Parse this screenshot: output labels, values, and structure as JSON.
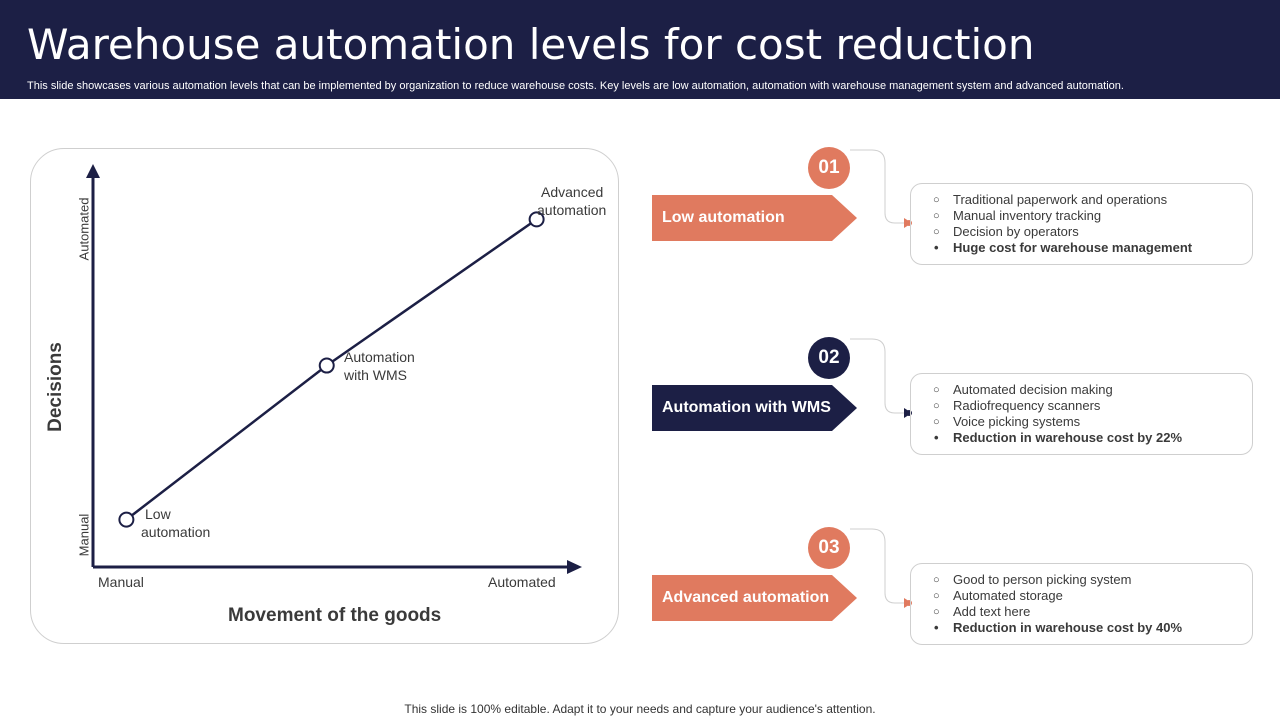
{
  "header": {
    "title": "Warehouse automation levels for cost reduction",
    "subtitle": "This slide showcases various automation levels that can be implemented by organization to reduce warehouse costs. Key levels are low automation, automation with warehouse management system and advanced automation."
  },
  "chart_data": {
    "type": "line",
    "xlabel": "Movement of the goods",
    "ylabel": "Decisions",
    "x_ticks": [
      "Manual",
      "Automated"
    ],
    "y_ticks": [
      "Manual",
      "Automated"
    ],
    "xlim": [
      0,
      1
    ],
    "ylim": [
      0,
      1
    ],
    "points": [
      {
        "label_line1": "Low",
        "label_line2": "automation",
        "x": 0.07,
        "y": 0.12
      },
      {
        "label_line1": "Automation",
        "label_line2": "with WMS",
        "x": 0.49,
        "y": 0.51
      },
      {
        "label_line1": "Advanced",
        "label_line2": "automation",
        "x": 0.93,
        "y": 0.88
      }
    ],
    "line_color": "#1c1f45"
  },
  "levels": [
    {
      "number": "01",
      "label": "Low automation",
      "color": "#e07a5f",
      "items": [
        "Traditional paperwork and operations",
        "Manual inventory tracking",
        "Decision by operators"
      ],
      "highlight": "Huge cost for warehouse management"
    },
    {
      "number": "02",
      "label": "Automation with WMS",
      "color": "#1c1f45",
      "items": [
        "Automated decision making",
        "Radiofrequency scanners",
        "Voice picking systems"
      ],
      "highlight": "Reduction in warehouse cost by 22%"
    },
    {
      "number": "03",
      "label": "Advanced automation",
      "color": "#e07a5f",
      "items": [
        "Good to person picking system",
        "Automated storage",
        "Add text here"
      ],
      "highlight": "Reduction in warehouse cost by 40%"
    }
  ],
  "footer": "This slide is 100% editable. Adapt it to your needs and capture your audience's attention."
}
